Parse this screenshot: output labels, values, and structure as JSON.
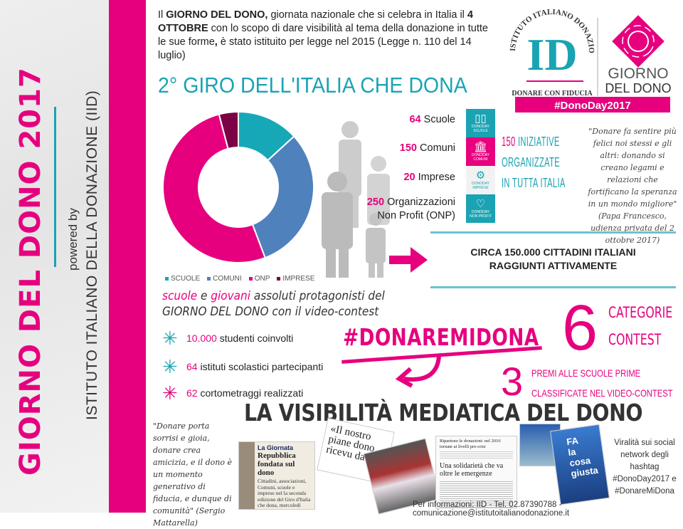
{
  "side": {
    "title": "GIORNO DEL DONO 2017",
    "powered": "powered by",
    "institute": "ISTITUTO ITALIANO DELLA DONAZIONE (IID)"
  },
  "intro": {
    "p1": "Il ",
    "b1": "GIORNO DEL DONO,",
    "p2": " giornata nazionale che si celebra in Italia il ",
    "b2": "4 OTTOBRE",
    "p3": " con lo scopo di dare visibilità al tema della donazione in tutte le sue forme",
    "b3": ",",
    "p4": " è stato istituito per legge nel 2015 (Legge n. 110 del 14 luglio)"
  },
  "logo": {
    "arc": "ISTITUTO ITALIANO DONAZIONE",
    "mark": "ID",
    "tagline": "DONARE CON FIDUCIA",
    "gdd1": "GIORNO",
    "gdd2": "DEL DONO",
    "hashtag": "#DonoDay2017"
  },
  "giro_title": "2° GIRO DELL'ITALIA CHE DONA",
  "chart_data": {
    "type": "pie",
    "donut": true,
    "categories": [
      "SCUOLE",
      "COMUNI",
      "ONP",
      "IMPRESE"
    ],
    "values": [
      64,
      150,
      250,
      20
    ],
    "colors": [
      "#17a8b8",
      "#4f81bd",
      "#e6007e",
      "#7b0045"
    ],
    "legend_position": "bottom"
  },
  "stats": [
    {
      "n": "64",
      "label": " Scuole"
    },
    {
      "n": "150",
      "label": " Comuni"
    },
    {
      "n": "20",
      "label": " Imprese"
    },
    {
      "n": "250",
      "label": " Organizzazioni",
      "label2": "Non Profit (ONP)"
    }
  ],
  "tiles": [
    {
      "icon": "book-icon",
      "small": "DONODAY",
      "label": "SCUOLE",
      "color": "#1aa3b3"
    },
    {
      "icon": "building-icon",
      "small": "DONODAY",
      "label": "COMUNI",
      "color": "#e6007e"
    },
    {
      "icon": "gears-icon",
      "small": "DONODAY",
      "label": "IMPRESE",
      "color": "#f2f2f2"
    },
    {
      "icon": "heart-icon",
      "small": "DONODAY",
      "label": "NON PROFIT",
      "color": "#1aa3b3"
    }
  ],
  "iniziative": {
    "n": "150",
    "l1": " INIZIATIVE",
    "l2": "ORGANIZZATE",
    "l3": "IN TUTTA ITALIA"
  },
  "papa_quote": "\"Donare fa sentire più felici noi stessi e gli altri: donando si creano legami e relazioni che fortificano la speranza in un mondo migliore\" (Papa Francesco, udienza privata del 2 ottobre 2017)",
  "circa": {
    "l1": "CIRCA 150.000 CITTADINI ITALIANI",
    "l2": "RAGGIUNTI ATTIVAMENTE"
  },
  "contest": {
    "w1": "scuole",
    "w2": " e ",
    "w3": "giovani",
    "w4": " assoluti protagonisti del",
    "l2": "GIORNO DEL DONO con il video-contest"
  },
  "bullets": [
    {
      "n": "10.000",
      "t": " studenti coinvolti"
    },
    {
      "n": "64",
      "t": " istituti scolastici partecipanti"
    },
    {
      "n": "62",
      "t": " cortometraggi realizzati"
    }
  ],
  "hashtag": "#DONAREMIDONA",
  "six": {
    "n": "6",
    "l1": "CATEGORIE",
    "l2": "CONTEST"
  },
  "three": {
    "n": "3",
    "l1": "PREMI ALLE SCUOLE PRIME",
    "l2": "CLASSIFICATE NEL VIDEO-CONTEST"
  },
  "visibilita": "LA VISIBILITÀ MEDIATICA DEL DONO",
  "mattarella": "\"Donare porta sorrisi e gioia, donare crea amicizia, e il dono è un momento generativo di fiducia, e dunque di comunità\" (Sergio Mattarella)",
  "clips": {
    "c1_head": "La Giornata",
    "c1_title": "Repubblica fondata sul dono",
    "c1_body": "Cittadini, associazioni, Comuni, scuole e imprese nel la seconda edizione del Giro d'Italia che dona, mercoledì",
    "c2": "«Il nostro piane dono ricevu da con",
    "c3_head": "Ripartono le donazioni: nel 2016 tornate ai livelli pre-crisi",
    "c3_title": "Una solidarietà che va oltre le emergenze",
    "c4": "FA la cosa giusta"
  },
  "viral": "Viralità sui social network degli hashtag #DonoDay2017 e #DonareMiDona",
  "info": "Per informazioni: IID - Tel. 02.87390788 - comunicazione@istitutoitalianodonazione.it"
}
